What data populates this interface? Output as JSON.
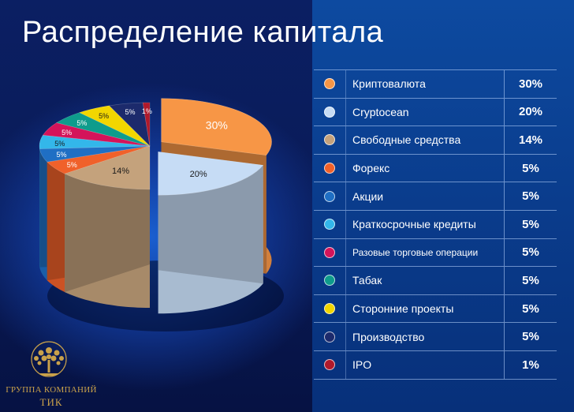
{
  "title": "Распределение капитала",
  "logo": {
    "line1": "ГРУППА КОМПАНИЙ",
    "line2": "ТИК"
  },
  "chart_data": {
    "type": "pie",
    "title": "Распределение капитала",
    "legend_placement": "right",
    "slices": [
      {
        "label": "Криптовалюта",
        "value": 30,
        "display": "30%",
        "color": "#f79646"
      },
      {
        "label": "Cryptocean",
        "value": 20,
        "display": "20%",
        "color": "#c6dcf5"
      },
      {
        "label": "Свободные средства",
        "value": 14,
        "display": "14%",
        "color": "#c4a27c"
      },
      {
        "label": "Форекс",
        "value": 5,
        "display": "5%",
        "color": "#f0612a"
      },
      {
        "label": "Акции",
        "value": 5,
        "display": "5%",
        "color": "#1f6fc4"
      },
      {
        "label": "Краткосрочные кредиты",
        "value": 5,
        "display": "5%",
        "color": "#33b7ea"
      },
      {
        "label": "Разовые торговые операции",
        "value": 5,
        "display": "5%",
        "color": "#d4145a"
      },
      {
        "label": "Табак",
        "value": 5,
        "display": "5%",
        "color": "#0e9c8c"
      },
      {
        "label": "Сторонние проекты",
        "value": 5,
        "display": "5%",
        "color": "#f2d600"
      },
      {
        "label": "Производство",
        "value": 5,
        "display": "5%",
        "color": "#1c2a6c"
      },
      {
        "label": "IPO",
        "value": 1,
        "display": "1%",
        "color": "#b0192b"
      }
    ]
  }
}
